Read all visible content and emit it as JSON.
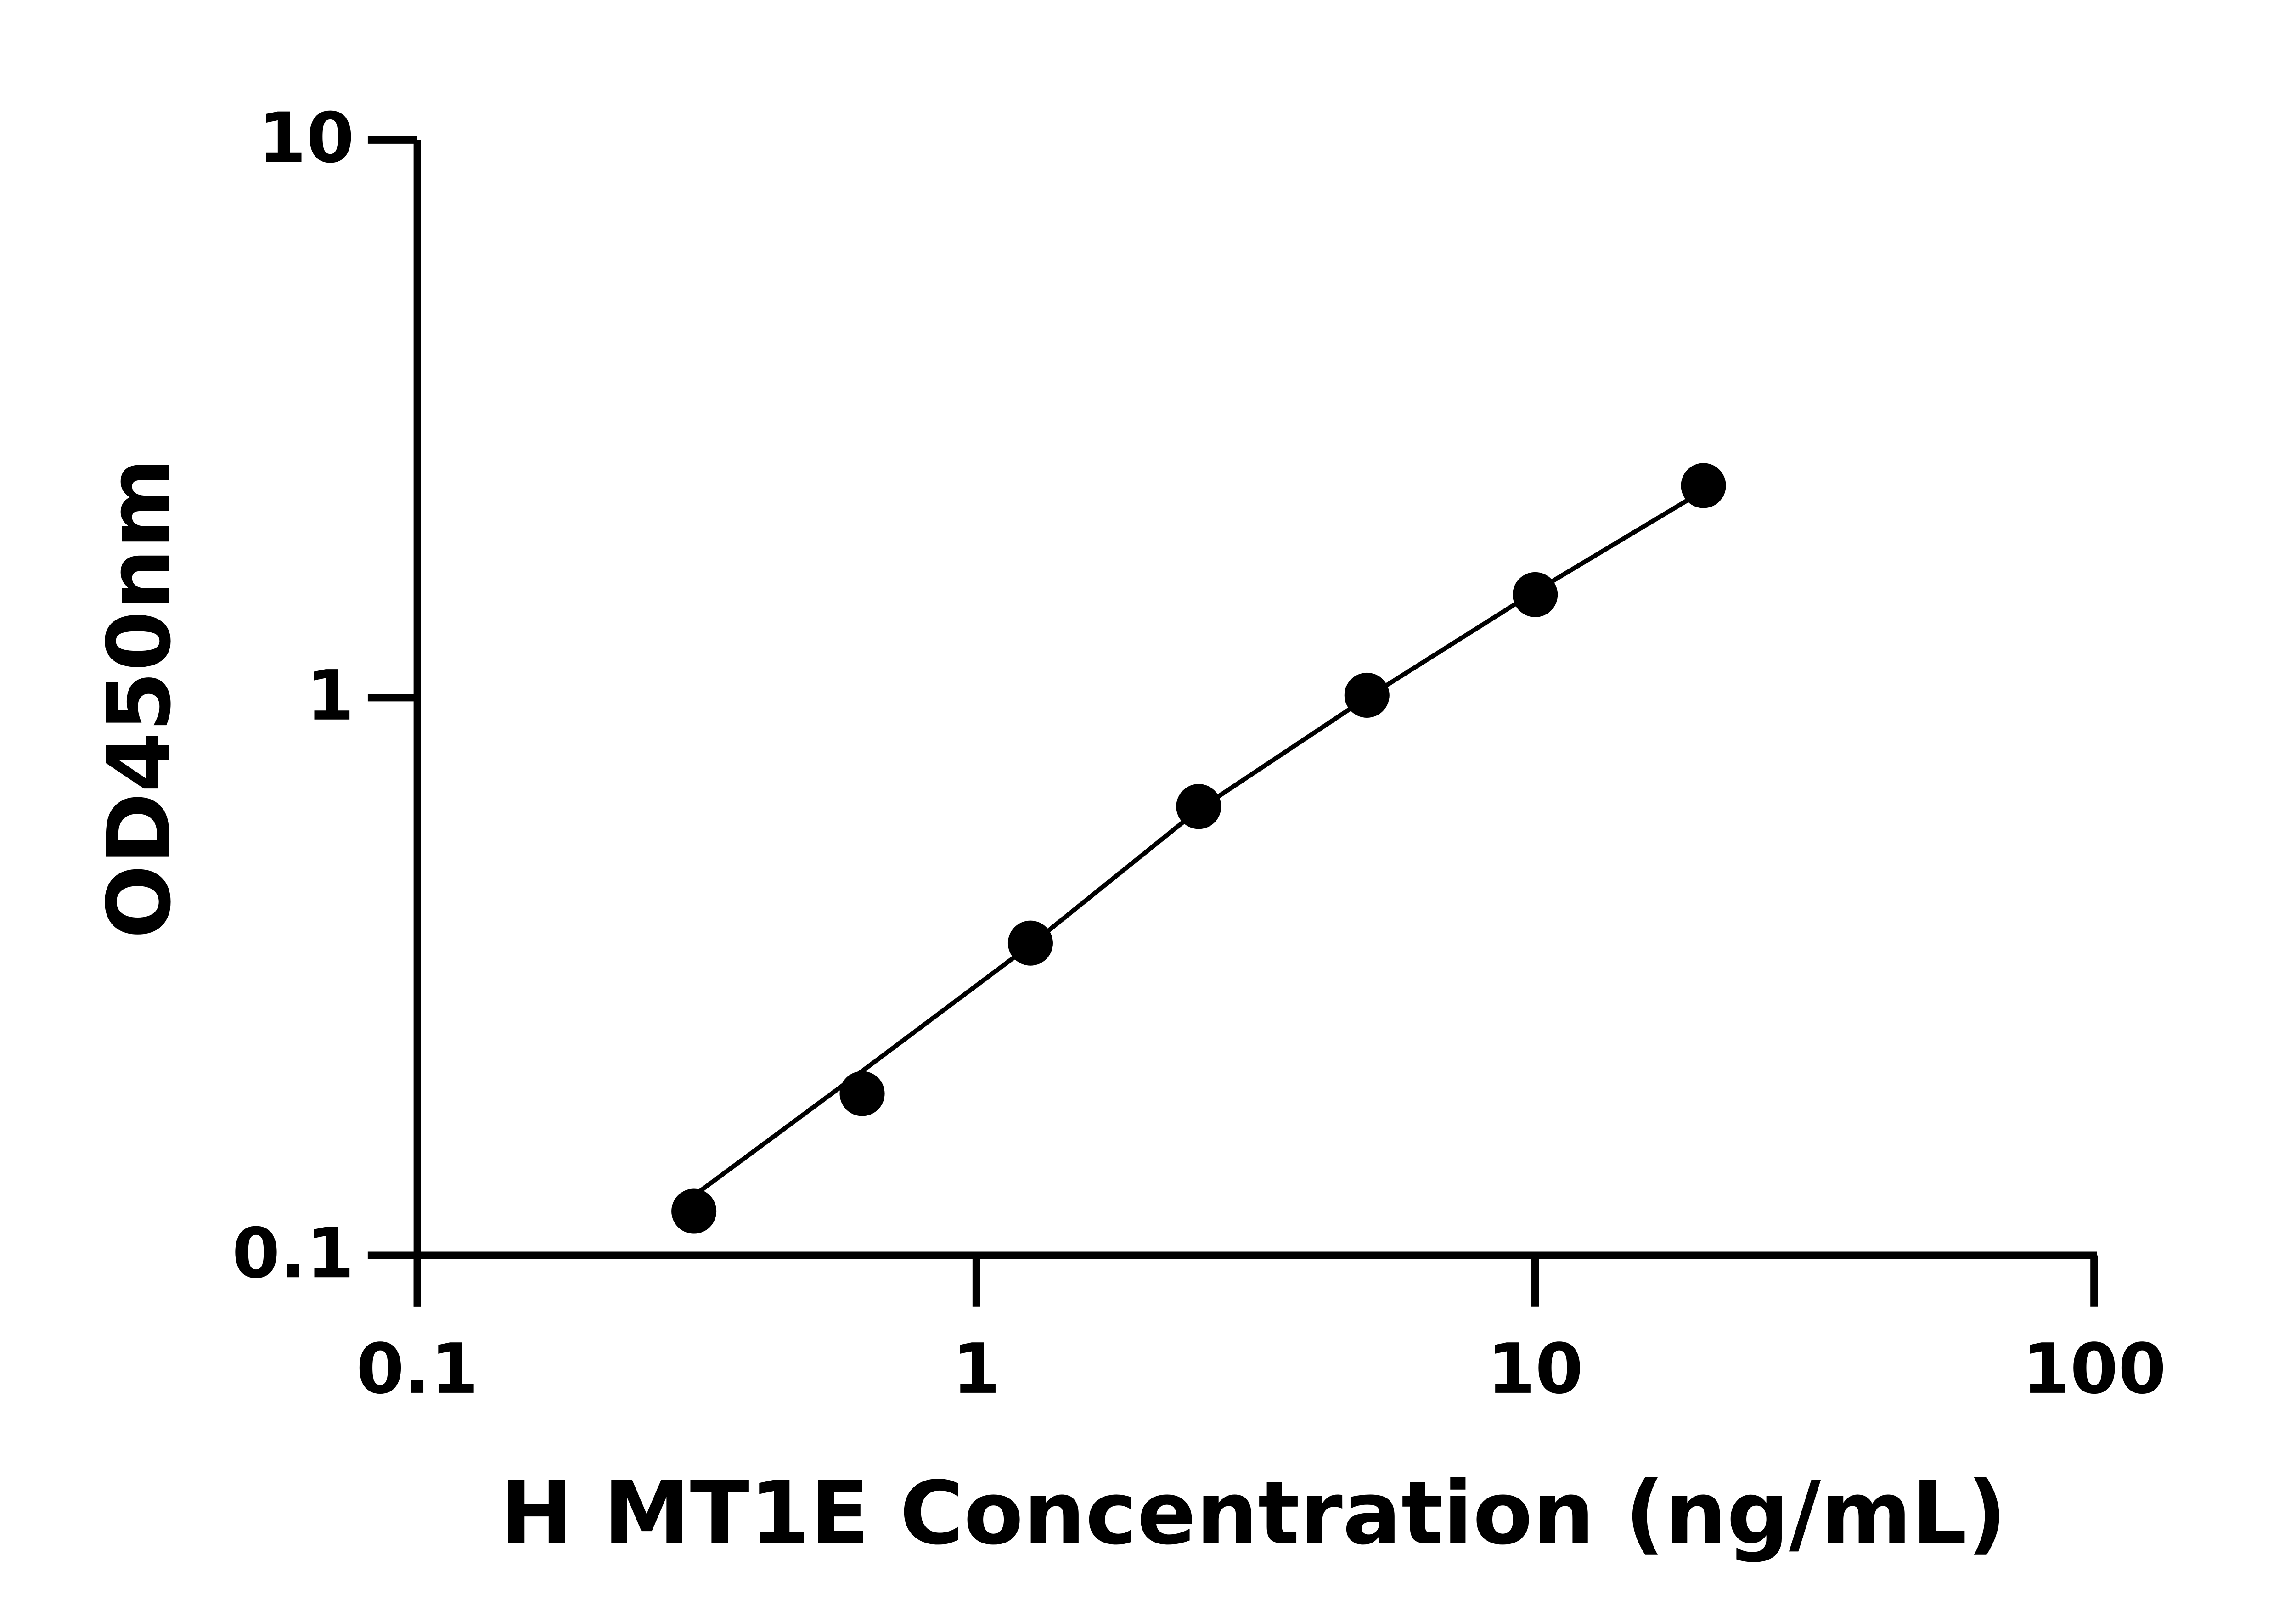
{
  "chart_data": {
    "type": "scatter",
    "x_label": "H MT1E Concentration (ng/mL)",
    "y_label": "OD450nm",
    "x": [
      0.3125,
      0.625,
      1.25,
      2.5,
      5,
      10,
      20
    ],
    "series": [
      {
        "color": "#000000",
        "values": [
          0.12,
          0.195,
          0.363,
          0.638,
          1.01,
          1.53,
          2.4
        ],
        "mode": "markers"
      },
      {
        "color": "#000000",
        "values": [
          0.128,
          0.214,
          0.36,
          0.63,
          1.0,
          1.55,
          2.35
        ],
        "mode": "line"
      }
    ],
    "xlim": [
      0.1,
      100
    ],
    "xticks": [
      0.1,
      1,
      10,
      100
    ],
    "xlog": true,
    "ylim": [
      0.1,
      10
    ],
    "yticks": [
      0.1,
      1,
      10
    ],
    "ylog": true,
    "grid": false
  }
}
